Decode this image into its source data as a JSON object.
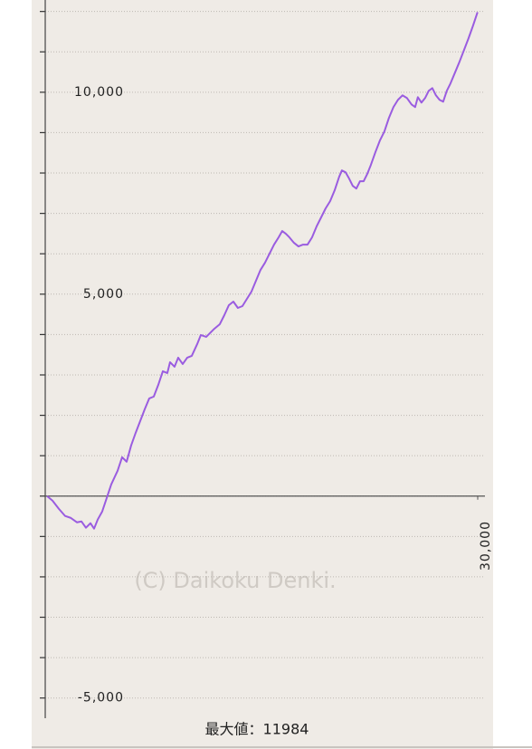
{
  "chart_data": {
    "type": "line",
    "x": [
      0,
      378,
      819,
      1260,
      1638,
      2080,
      2394,
      2709,
      3024,
      3276,
      3528,
      3843,
      4158,
      4473,
      4914,
      5229,
      5544,
      5859,
      6174,
      6489,
      6804,
      7119,
      7434,
      7749,
      8064,
      8379,
      8568,
      8883,
      9135,
      9450,
      9765,
      10080,
      10458,
      10710,
      11088,
      11340,
      11655,
      12033,
      12348,
      12663,
      12978,
      13293,
      13608,
      13923,
      14238,
      14553,
      14868,
      15183,
      15498,
      15813,
      16128,
      16380,
      16632,
      16884,
      17199,
      17514,
      17829,
      18144,
      18459,
      18774,
      19089,
      19404,
      19719,
      20034,
      20349,
      20538,
      20790,
      21042,
      21294,
      21546,
      21798,
      22050,
      22302,
      22554,
      22869,
      23184,
      23499,
      23814,
      24129,
      24444,
      24759,
      25074,
      25389,
      25641,
      25830,
      26082,
      26334,
      26586,
      26838,
      27090,
      27342,
      27594,
      27846,
      28098,
      28413,
      28728,
      29043,
      29358,
      29673,
      29988
    ],
    "series": [
      {
        "color": "#9a5ce0",
        "values": [
          0,
          -112,
          -314,
          -493,
          -538,
          -650,
          -627,
          -784,
          -672,
          -806,
          -582,
          -381,
          -45,
          291,
          627,
          963,
          851,
          1254,
          1568,
          1859,
          2150,
          2419,
          2464,
          2755,
          3091,
          3046,
          3315,
          3203,
          3427,
          3270,
          3427,
          3472,
          3763,
          3987,
          3942,
          4032,
          4144,
          4256,
          4480,
          4726,
          4816,
          4659,
          4704,
          4883,
          5062,
          5331,
          5600,
          5779,
          6003,
          6227,
          6406,
          6563,
          6496,
          6406,
          6272,
          6182,
          6227,
          6227,
          6406,
          6675,
          6899,
          7123,
          7302,
          7571,
          7907,
          8064,
          8019,
          7862,
          7683,
          7616,
          7795,
          7795,
          7974,
          8198,
          8512,
          8803,
          9027,
          9363,
          9632,
          9811,
          9923,
          9856,
          9699,
          9632,
          9878,
          9744,
          9856,
          10035,
          10102,
          9923,
          9811,
          9766,
          10035,
          10214,
          10483,
          10752,
          11043,
          11334,
          11648,
          11984
        ]
      }
    ],
    "xlim": [
      0,
      30000
    ],
    "xticks": [
      {
        "value": 30000,
        "label": "30,000"
      }
    ],
    "ylim": [
      -5500,
      12284
    ],
    "yticks": [
      {
        "value": 10000,
        "label": "10,000"
      },
      {
        "value": 5000,
        "label": "5,000"
      },
      {
        "value": -5000,
        "label": "-5,000"
      }
    ],
    "minor_yticks": [
      -5000,
      -4000,
      -3000,
      -2000,
      -1000,
      0,
      1000,
      2000,
      3000,
      4000,
      5000,
      6000,
      7000,
      8000,
      9000,
      10000,
      11000,
      12000
    ],
    "grid": true,
    "zero_line": true,
    "watermark": "(C) Daikoku Denki.",
    "footer": "最大値：11984"
  }
}
